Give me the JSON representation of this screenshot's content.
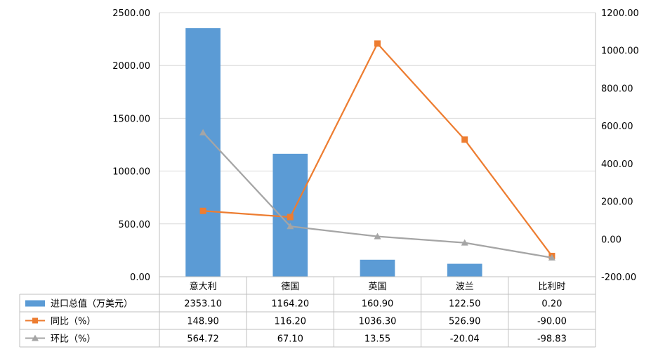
{
  "chart_data": {
    "type": "bar",
    "categories": [
      "意大利",
      "德国",
      "英国",
      "波兰",
      "比利时"
    ],
    "series": [
      {
        "name": "进口总值（万美元）",
        "kind": "bar",
        "axis": "left",
        "color": "#5B9BD5",
        "values": [
          2353.1,
          1164.2,
          160.9,
          122.5,
          0.2
        ],
        "labels": [
          "2353.10",
          "1164.20",
          "160.90",
          "122.50",
          "0.20"
        ]
      },
      {
        "name": "同比（%）",
        "kind": "line",
        "axis": "right",
        "marker": "square",
        "color": "#ED7D31",
        "values": [
          148.9,
          116.2,
          1036.3,
          526.9,
          -90.0
        ],
        "labels": [
          "148.90",
          "116.20",
          "1036.30",
          "526.90",
          "-90.00"
        ]
      },
      {
        "name": "环比（%）",
        "kind": "line",
        "axis": "right",
        "marker": "triangle",
        "color": "#A5A5A5",
        "values": [
          564.72,
          67.1,
          13.55,
          -20.04,
          -98.83
        ],
        "labels": [
          "564.72",
          "67.10",
          "13.55",
          "-20.04",
          "-98.83"
        ]
      }
    ],
    "y_left": {
      "min": 0,
      "max": 2500,
      "step": 500,
      "ticks": [
        "0.00",
        "500.00",
        "1000.00",
        "1500.00",
        "2000.00",
        "2500.00"
      ]
    },
    "y_right": {
      "min": -200,
      "max": 1200,
      "step": 200,
      "ticks": [
        "-200.00",
        "0.00",
        "200.00",
        "400.00",
        "600.00",
        "800.00",
        "1000.00",
        "1200.00"
      ]
    },
    "grid": true,
    "data_table": true,
    "legend": "data-table"
  }
}
